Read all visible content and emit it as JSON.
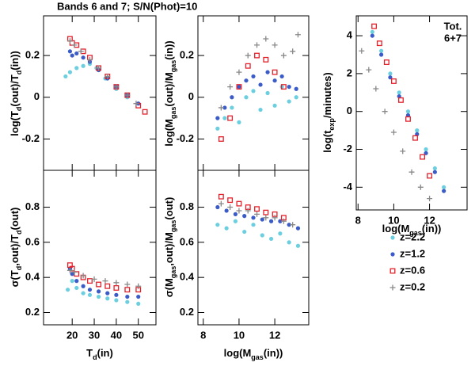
{
  "title": "Bands 6 and 7; S/N(Phot)=10",
  "chart_data": [
    {
      "type": "scatter",
      "xlim": [
        7,
        58
      ],
      "ylim": [
        -0.35,
        0.39
      ],
      "xticks": [
        20,
        30,
        40,
        50
      ],
      "yticks": [
        -0.2,
        0,
        0.2
      ],
      "xtick_labels": false,
      "ylabel": [
        "log(T",
        "d",
        "(out)/T",
        "d",
        "(in))"
      ],
      "series": [
        {
          "name": "z=2.2",
          "color": "#6ccfe0",
          "marker": "circle",
          "x": [
            17,
            19,
            22,
            25,
            28,
            31,
            35,
            40,
            45,
            50
          ],
          "values": [
            0.1,
            0.12,
            0.14,
            0.15,
            0.16,
            0.14,
            0.09,
            0.04,
            0.0,
            -0.03
          ]
        },
        {
          "name": "z=1.2",
          "color": "#3a5bc8",
          "marker": "circle",
          "x": [
            19,
            20,
            22,
            25,
            28,
            32,
            36,
            40,
            45,
            50
          ],
          "values": [
            0.22,
            0.2,
            0.21,
            0.19,
            0.17,
            0.13,
            0.09,
            0.05,
            0.01,
            -0.03
          ]
        },
        {
          "name": "z=0.6",
          "color": "#e3202a",
          "marker": "square",
          "x": [
            19,
            20,
            22,
            25,
            28,
            32,
            36,
            40,
            45,
            50,
            53
          ],
          "values": [
            0.28,
            0.26,
            0.25,
            0.22,
            0.19,
            0.14,
            0.1,
            0.05,
            0.01,
            -0.04,
            -0.07
          ]
        },
        {
          "name": "z=0.2",
          "color": "#888888",
          "marker": "plus",
          "x": [
            19,
            21,
            24,
            28,
            32,
            36,
            40,
            45,
            49
          ],
          "values": [
            0.27,
            0.25,
            0.22,
            0.18,
            0.14,
            0.1,
            0.05,
            0.01,
            -0.03
          ]
        }
      ]
    },
    {
      "type": "scatter",
      "xlim": [
        7,
        58
      ],
      "ylim": [
        0.13,
        1.01
      ],
      "xticks": [
        20,
        30,
        40,
        50
      ],
      "yticks": [
        0.2,
        0.4,
        0.6,
        0.8
      ],
      "xtick_labels": true,
      "ylabel": [
        "σ(T",
        "d",
        ",out)/T",
        "d",
        "(out)"
      ],
      "xlabel": [
        "T",
        "d",
        "(in)"
      ],
      "series": [
        {
          "name": "z=2.2",
          "color": "#6ccfe0",
          "marker": "circle",
          "x": [
            18,
            20,
            22,
            25,
            28,
            32,
            36,
            40,
            45,
            50
          ],
          "values": [
            0.33,
            0.38,
            0.34,
            0.31,
            0.3,
            0.29,
            0.28,
            0.27,
            0.26,
            0.25
          ]
        },
        {
          "name": "z=1.2",
          "color": "#3a5bc8",
          "marker": "circle",
          "x": [
            19,
            20,
            22,
            25,
            28,
            32,
            36,
            40,
            45,
            50
          ],
          "values": [
            0.45,
            0.42,
            0.38,
            0.35,
            0.33,
            0.32,
            0.31,
            0.3,
            0.29,
            0.29
          ]
        },
        {
          "name": "z=0.6",
          "color": "#e3202a",
          "marker": "square",
          "x": [
            19,
            20,
            22,
            25,
            28,
            32,
            36,
            40,
            45,
            50
          ],
          "values": [
            0.47,
            0.45,
            0.42,
            0.4,
            0.38,
            0.36,
            0.35,
            0.34,
            0.33,
            0.33
          ]
        },
        {
          "name": "z=0.2",
          "color": "#888888",
          "marker": "plus",
          "x": [
            19,
            21,
            25,
            30,
            35,
            40,
            45,
            50
          ],
          "values": [
            0.44,
            0.43,
            0.41,
            0.39,
            0.38,
            0.37,
            0.36,
            0.35
          ]
        }
      ]
    },
    {
      "type": "scatter",
      "xlim": [
        7.7,
        13.9
      ],
      "ylim": [
        -0.35,
        0.39
      ],
      "xticks": [
        8,
        10,
        12
      ],
      "yticks": [
        -0.2,
        0,
        0.2
      ],
      "xtick_labels": false,
      "ylabel": [
        "log(M",
        "gas",
        "(out)/M",
        "gas",
        "(in))"
      ],
      "series": [
        {
          "name": "z=2.2",
          "color": "#6ccfe0",
          "marker": "circle",
          "x": [
            8.8,
            9.2,
            9.6,
            10,
            10.4,
            10.8,
            11.2,
            11.6,
            12,
            12.4,
            12.8,
            13.2
          ],
          "values": [
            -0.15,
            -0.1,
            -0.05,
            -0.12,
            0,
            0.03,
            -0.06,
            0.02,
            -0.04,
            0.05,
            -0.02,
            0.0
          ]
        },
        {
          "name": "z=1.2",
          "color": "#3a5bc8",
          "marker": "circle",
          "x": [
            8.8,
            9.2,
            9.6,
            10,
            10.4,
            10.8,
            11.2,
            11.6,
            12,
            12.4,
            12.8,
            13.2
          ],
          "values": [
            -0.1,
            -0.05,
            0,
            0.05,
            0.08,
            0.1,
            0.06,
            0.12,
            0.08,
            0.1,
            0.05,
            0.04
          ]
        },
        {
          "name": "z=0.6",
          "color": "#e3202a",
          "marker": "square",
          "x": [
            9,
            9.5,
            10,
            10.5,
            11,
            11.5,
            12,
            12.5
          ],
          "values": [
            -0.2,
            -0.1,
            0.05,
            0.15,
            0.2,
            0.18,
            0.12,
            0.05
          ]
        },
        {
          "name": "z=0.2",
          "color": "#888888",
          "marker": "plus",
          "x": [
            9,
            9.5,
            10,
            10.5,
            11,
            11.5,
            12,
            12.5,
            13,
            13.3
          ],
          "values": [
            -0.05,
            0.05,
            0.12,
            0.2,
            0.25,
            0.28,
            0.25,
            0.2,
            0.22,
            0.3
          ]
        }
      ]
    },
    {
      "type": "scatter",
      "xlim": [
        7.7,
        13.9
      ],
      "ylim": [
        0.13,
        1.01
      ],
      "xticks": [
        8,
        10,
        12
      ],
      "yticks": [
        0.2,
        0.4,
        0.6,
        0.8
      ],
      "xtick_labels": true,
      "ylabel": [
        "σ(M",
        "gas",
        ",out)/M",
        "gas",
        "(out)"
      ],
      "xlabel": [
        "log(M",
        "gas",
        "(in))"
      ],
      "series": [
        {
          "name": "z=2.2",
          "color": "#6ccfe0",
          "marker": "circle",
          "x": [
            8.8,
            9.3,
            9.8,
            10.3,
            10.8,
            11.3,
            11.8,
            12.3,
            12.8,
            13.3
          ],
          "values": [
            0.7,
            0.68,
            0.72,
            0.66,
            0.7,
            0.64,
            0.62,
            0.65,
            0.6,
            0.58
          ]
        },
        {
          "name": "z=1.2",
          "color": "#3a5bc8",
          "marker": "circle",
          "x": [
            8.8,
            9.3,
            9.8,
            10.3,
            10.8,
            11.3,
            11.8,
            12.3,
            12.8,
            13.3
          ],
          "values": [
            0.8,
            0.78,
            0.76,
            0.75,
            0.74,
            0.73,
            0.72,
            0.72,
            0.7,
            0.68
          ]
        },
        {
          "name": "z=0.6",
          "color": "#e3202a",
          "marker": "square",
          "x": [
            9,
            9.5,
            10,
            10.5,
            11,
            11.5,
            12,
            12.5
          ],
          "values": [
            0.86,
            0.84,
            0.82,
            0.8,
            0.79,
            0.77,
            0.76,
            0.74
          ]
        },
        {
          "name": "z=0.2",
          "color": "#888888",
          "marker": "plus",
          "x": [
            9,
            9.5,
            10,
            10.5,
            11,
            11.5,
            12,
            12.5,
            13
          ],
          "values": [
            0.82,
            0.8,
            0.78,
            0.78,
            0.76,
            0.74,
            0.74,
            0.72,
            0.7
          ]
        }
      ]
    },
    {
      "type": "scatter",
      "xlim": [
        7.9,
        14.1
      ],
      "ylim": [
        -5.2,
        5.05
      ],
      "xticks": [
        8,
        10,
        12
      ],
      "yticks": [
        -4,
        -2,
        0,
        2,
        4
      ],
      "xtick_labels": true,
      "ylabel": [
        "log(t",
        "exp",
        "/minutes)"
      ],
      "xlabel": [
        "log(M",
        "gas",
        "(in))"
      ],
      "annotation": [
        "Tot.",
        "6+7"
      ],
      "series": [
        {
          "name": "z=2.2",
          "color": "#6ccfe0",
          "marker": "circle",
          "x": [
            8.8,
            9.3,
            9.8,
            10.3,
            10.8,
            11.3,
            11.8,
            12.3,
            12.8
          ],
          "values": [
            4.2,
            3.2,
            2.0,
            1.0,
            0,
            -1.0,
            -2.0,
            -3.0,
            -4.0
          ]
        },
        {
          "name": "z=1.2",
          "color": "#3a5bc8",
          "marker": "circle",
          "x": [
            8.8,
            9.3,
            9.8,
            10.3,
            10.8,
            11.3,
            11.8,
            12.3,
            12.8
          ],
          "values": [
            4.0,
            3.0,
            1.8,
            0.8,
            -0.2,
            -1.2,
            -2.2,
            -3.2,
            -4.2
          ]
        },
        {
          "name": "z=0.6",
          "color": "#e3202a",
          "marker": "square",
          "x": [
            8.9,
            9.2,
            9.6,
            10,
            10.4,
            10.8,
            11.2,
            11.6,
            12
          ],
          "values": [
            4.5,
            3.6,
            2.6,
            1.6,
            0.6,
            -0.4,
            -1.4,
            -2.4,
            -3.4
          ]
        },
        {
          "name": "z=0.2",
          "color": "#888888",
          "marker": "plus",
          "x": [
            8.2,
            8.6,
            9,
            9.5,
            10,
            10.5,
            11,
            11.5,
            12
          ],
          "values": [
            3.2,
            2.2,
            1.2,
            0,
            -1.1,
            -2.1,
            -3.2,
            -4,
            -4.6
          ]
        }
      ]
    }
  ]
}
